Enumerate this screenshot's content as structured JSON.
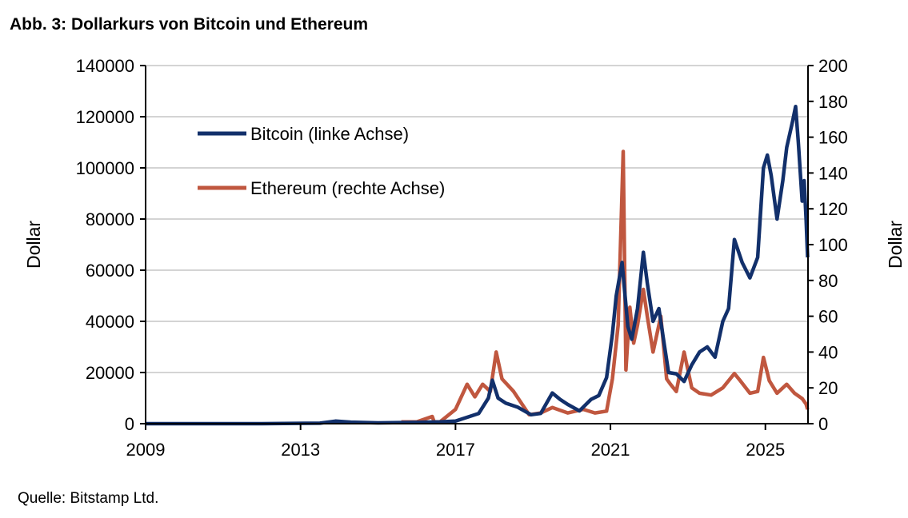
{
  "chart_data": {
    "type": "line",
    "title": "Abb. 3: Dollarkurs von Bitcoin und Ethereum",
    "source": "Quelle: Bitstamp Ltd.",
    "ylabel_left": "Dollar",
    "ylabel_right": "Dollar",
    "xlim": [
      2009,
      2026.1
    ],
    "ylim_left": [
      0,
      140000
    ],
    "ylim_right": [
      0,
      200
    ],
    "x_ticks": [
      "2009",
      "2013",
      "2017",
      "2021",
      "2025"
    ],
    "y_ticks_left": [
      "0",
      "20000",
      "40000",
      "60000",
      "80000",
      "100000",
      "120000",
      "140000"
    ],
    "y_ticks_right": [
      "0",
      "20",
      "40",
      "60",
      "80",
      "100",
      "120",
      "140",
      "160",
      "180",
      "200"
    ],
    "grid": true,
    "legend_placement": "top-left",
    "series": [
      {
        "name": "Bitcoin (linke Achse)",
        "axis": "left",
        "color": "#12306b",
        "x": [
          2009,
          2010.5,
          2012,
          2013.5,
          2013.9,
          2014.3,
          2015,
          2016,
          2016.6,
          2017.0,
          2017.3,
          2017.6,
          2017.85,
          2017.95,
          2018.1,
          2018.3,
          2018.6,
          2018.95,
          2019.2,
          2019.5,
          2019.7,
          2019.9,
          2020.2,
          2020.5,
          2020.7,
          2020.9,
          2021.05,
          2021.15,
          2021.3,
          2021.45,
          2021.55,
          2021.7,
          2021.85,
          2021.95,
          2022.1,
          2022.25,
          2022.4,
          2022.5,
          2022.7,
          2022.9,
          2023.1,
          2023.3,
          2023.5,
          2023.7,
          2023.9,
          2024.05,
          2024.2,
          2024.4,
          2024.6,
          2024.8,
          2024.95,
          2025.05,
          2025.15,
          2025.3,
          2025.45,
          2025.55,
          2025.7,
          2025.78,
          2025.85,
          2025.95,
          2026.0,
          2026.05,
          2026.09
        ],
        "values": [
          0,
          0,
          10,
          200,
          1000,
          600,
          300,
          500,
          700,
          1000,
          2500,
          4000,
          10000,
          17000,
          10000,
          8000,
          6500,
          3500,
          4000,
          12000,
          9500,
          7500,
          5000,
          9500,
          11000,
          18000,
          35000,
          50000,
          63000,
          38000,
          33000,
          45000,
          67000,
          55000,
          40000,
          45000,
          30000,
          20000,
          19500,
          16500,
          23000,
          28000,
          30000,
          26000,
          40000,
          45000,
          72000,
          63000,
          57000,
          65000,
          100000,
          105000,
          97000,
          80000,
          95000,
          108000,
          118000,
          124000,
          110000,
          87000,
          95000,
          80000,
          65000
        ]
      },
      {
        "name": "Ethereum (rechte Achse)",
        "axis": "right",
        "color": "#c0573f",
        "x": [
          2015.6,
          2016.0,
          2016.4,
          2016.45,
          2016.6,
          2017.0,
          2017.3,
          2017.5,
          2017.7,
          2017.9,
          2018.05,
          2018.2,
          2018.5,
          2018.9,
          2019.2,
          2019.5,
          2019.9,
          2020.3,
          2020.6,
          2020.9,
          2021.05,
          2021.2,
          2021.33,
          2021.4,
          2021.5,
          2021.6,
          2021.7,
          2021.85,
          2021.95,
          2022.1,
          2022.3,
          2022.45,
          2022.55,
          2022.7,
          2022.9,
          2023.1,
          2023.3,
          2023.6,
          2023.9,
          2024.2,
          2024.35,
          2024.6,
          2024.8,
          2024.95,
          2025.1,
          2025.3,
          2025.55,
          2025.75,
          2025.95,
          2026.05,
          2026.09
        ],
        "values": [
          1,
          1,
          4,
          1,
          1,
          8,
          22,
          15,
          22,
          18,
          40,
          25,
          18,
          5,
          6,
          9,
          6,
          8,
          6,
          7,
          25,
          55,
          152,
          30,
          65,
          45,
          55,
          75,
          60,
          40,
          60,
          25,
          22,
          18,
          40,
          20,
          17,
          16,
          20,
          28,
          24,
          17,
          18,
          37,
          24,
          17,
          22,
          17,
          14,
          11,
          8
        ]
      }
    ]
  }
}
